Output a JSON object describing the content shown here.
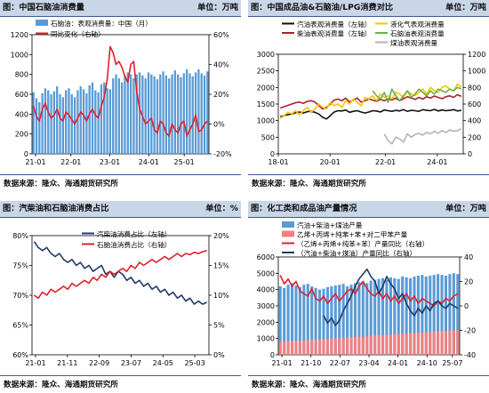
{
  "panels": [
    {
      "prefix": "图：",
      "title": "中国石脑油消费量",
      "unit": "单位：万吨",
      "source": "数据来源：隆众、海通期货研究所"
    },
    {
      "prefix": "图：",
      "title": "中国成品油&石脑油/LPG消费对比",
      "unit": "单位：万吨",
      "source": "数据来源：隆众、海通期货研究所"
    },
    {
      "prefix": "图：",
      "title": "汽柴油和石脑油消费占比",
      "unit": "单位：%",
      "source": "数据来源：隆众、海通期货研究所"
    },
    {
      "prefix": "图：",
      "title": "化工类和成品油产量情况",
      "unit": "单位：万吨",
      "source": "数据来源：隆众、海通期货研究所"
    }
  ],
  "chart_data": [
    {
      "type": "bar",
      "y_left": {
        "min": 0,
        "max": 1200,
        "ticks": [
          "0",
          "200",
          "400",
          "600",
          "800",
          "1000",
          "1200"
        ]
      },
      "y_right": {
        "min": -20,
        "max": 60,
        "ticks": [
          "-20%",
          "0%",
          "20%",
          "40%",
          "60%"
        ]
      },
      "x_ticks": [
        "21-01",
        "22-01",
        "23-01",
        "24-01",
        "25-01"
      ],
      "series": [
        {
          "name": "石脑油：表观消费量：中国（月）",
          "kind": "bar",
          "axis": "left",
          "color": "#5b9bd5",
          "values": [
            620,
            560,
            520,
            610,
            660,
            640,
            600,
            630,
            680,
            600,
            570,
            640,
            660,
            600,
            570,
            640,
            680,
            650,
            610,
            690,
            720,
            640,
            620,
            700,
            720,
            660,
            650,
            760,
            800,
            760,
            720,
            790,
            820,
            800,
            760,
            800,
            820,
            790,
            760,
            820,
            800,
            780,
            750,
            800,
            830,
            790,
            760,
            800,
            840,
            800,
            770,
            810,
            850,
            810,
            780,
            820,
            850,
            810,
            790,
            830
          ]
        },
        {
          "name": "同比变化（右轴）",
          "kind": "line",
          "axis": "right",
          "color": "#e0202c",
          "values": [
            12,
            5,
            2,
            10,
            14,
            8,
            4,
            6,
            10,
            4,
            2,
            8,
            6,
            3,
            0,
            4,
            8,
            6,
            2,
            7,
            10,
            6,
            4,
            12,
            18,
            30,
            52,
            48,
            40,
            42,
            38,
            32,
            28,
            40,
            42,
            22,
            10,
            5,
            0,
            2,
            4,
            -4,
            -6,
            2,
            0,
            -6,
            -8,
            0,
            -4,
            -6,
            0,
            2,
            -8,
            -4,
            0,
            6,
            -5,
            -4,
            0,
            2
          ]
        }
      ]
    },
    {
      "type": "line",
      "y_left": {
        "min": 0,
        "max": 3000,
        "ticks": [
          "0",
          "500",
          "1000",
          "1500",
          "2000",
          "2500",
          "3000"
        ]
      },
      "y_right": {
        "min": 0,
        "max": 1200,
        "ticks": [
          "0",
          "200",
          "400",
          "600",
          "800",
          "1000",
          "1200"
        ]
      },
      "x_ticks": [
        "18-01",
        "20-01",
        "22-01",
        "24-01"
      ],
      "series": [
        {
          "name": "汽油表观消费量（左轴）",
          "axis": "left",
          "color": "#111111",
          "values": [
            1120,
            1150,
            1180,
            1200,
            1240,
            1260,
            1230,
            1270,
            1280,
            1250,
            1200,
            1100,
            1050,
            1150,
            1260,
            1300,
            1290,
            1320,
            1250,
            1280,
            1300,
            1260,
            1230,
            1260,
            1300,
            1290,
            1260,
            1320,
            1300,
            1280,
            1310,
            1290,
            1330,
            1280,
            1310,
            1300,
            1280,
            1330,
            1310,
            1300,
            1340,
            1290,
            1320,
            1300,
            1310,
            1330,
            1290,
            1310
          ]
        },
        {
          "name": "柴油表观消费量（左轴）",
          "axis": "left",
          "color": "#a8222e",
          "values": [
            1380,
            1420,
            1460,
            1500,
            1540,
            1560,
            1520,
            1580,
            1600,
            1560,
            1460,
            1350,
            1400,
            1500,
            1620,
            1650,
            1600,
            1680,
            1560,
            1620,
            1680,
            1560,
            1600,
            1650,
            1620,
            1580,
            1640,
            1600,
            1650,
            1620,
            1680,
            1600,
            1660,
            1720,
            1680,
            1640,
            1700,
            1650,
            1720,
            1680,
            1740,
            1700,
            1660,
            1720,
            1750,
            1700,
            1780,
            1730
          ]
        },
        {
          "name": "液化气表观消费量",
          "axis": "right",
          "color": "#f5c400",
          "values": [
            430,
            460,
            500,
            480,
            520,
            470,
            520,
            560,
            500,
            540,
            600,
            560,
            540,
            620,
            580,
            600,
            560,
            640,
            600,
            660,
            620,
            580,
            680,
            660,
            700,
            640,
            720,
            680,
            700,
            660,
            740,
            720,
            680,
            760,
            720,
            700,
            740,
            780,
            720,
            800,
            760,
            740,
            800,
            820,
            780,
            760,
            840,
            800
          ]
        },
        {
          "name": "石脑油表观消费量",
          "axis": "right",
          "color": "#6ab04c",
          "values": [
            null,
            null,
            null,
            null,
            null,
            null,
            null,
            null,
            null,
            null,
            null,
            null,
            null,
            null,
            null,
            null,
            null,
            null,
            null,
            null,
            null,
            null,
            null,
            null,
            760,
            700,
            660,
            740,
            620,
            780,
            700,
            640,
            700,
            760,
            680,
            720,
            780,
            740,
            700,
            760,
            720,
            780,
            760,
            740,
            780,
            760,
            800,
            780
          ]
        },
        {
          "name": "煤油表观消费量",
          "axis": "left",
          "color": "#b3b3b3",
          "values": [
            null,
            null,
            null,
            null,
            null,
            null,
            null,
            null,
            null,
            null,
            null,
            null,
            null,
            null,
            null,
            null,
            null,
            null,
            null,
            null,
            null,
            null,
            null,
            null,
            null,
            null,
            null,
            600,
            400,
            300,
            500,
            450,
            350,
            600,
            500,
            580,
            620,
            560,
            650,
            600,
            680,
            620,
            700,
            640,
            720,
            680,
            700,
            760
          ]
        }
      ]
    },
    {
      "type": "line",
      "y_left": {
        "min": 60,
        "max": 80,
        "ticks": [
          "60%",
          "65%",
          "70%",
          "75%",
          "80%"
        ]
      },
      "y_right": {
        "min": 0,
        "max": 20,
        "ticks": [
          "0%",
          "5%",
          "10%",
          "15%",
          "20%"
        ]
      },
      "x_ticks": [
        "21-01",
        "21-11",
        "22-09",
        "23-07",
        "24-05",
        "25-03"
      ],
      "series": [
        {
          "name": "汽柴油消费占比（左轴）",
          "axis": "left",
          "color": "#1f3a68",
          "values": [
            79,
            78,
            77.5,
            78,
            77,
            76.5,
            77,
            76,
            75.5,
            76,
            75,
            75.5,
            74.5,
            75,
            74,
            74.5,
            75,
            73.5,
            74,
            73,
            74,
            73.5,
            72.5,
            73,
            72,
            72.5,
            71.5,
            72,
            71,
            71.5,
            70.5,
            71,
            70,
            70.5,
            69.5,
            70,
            69,
            69.5,
            68.5,
            69,
            68.5,
            68.8
          ]
        },
        {
          "name": "石脑油消费占比（右轴）",
          "axis": "right",
          "color": "#e0202c",
          "values": [
            10,
            9.5,
            10.5,
            10,
            11,
            10.5,
            11,
            11.5,
            11,
            12,
            11.5,
            12,
            12.5,
            12,
            13,
            12.5,
            13.5,
            13,
            14,
            13.5,
            14,
            14.5,
            14,
            15,
            14.5,
            15.5,
            15,
            15.5,
            16,
            15.5,
            16,
            16.5,
            16,
            16.5,
            17,
            16.5,
            17,
            16.8,
            17.2,
            17,
            17.3,
            17.5
          ]
        }
      ]
    },
    {
      "type": "bar",
      "y_left": {
        "min": 0,
        "max": 6000,
        "ticks": [
          "0",
          "1000",
          "2000",
          "3000",
          "4000",
          "5000",
          "6000"
        ]
      },
      "y_right": {
        "min": -40,
        "max": 40,
        "ticks": [
          "-40",
          "-20",
          "0",
          "20",
          "40"
        ]
      },
      "x_ticks": [
        "21-01",
        "21-10",
        "22-07",
        "23-04",
        "24-01",
        "24-10",
        "25-07"
      ],
      "series": [
        {
          "name": "汽油+柴油+煤油产量",
          "kind": "bar",
          "axis": "left",
          "color": "#5b9bd5",
          "values": [
            4200,
            4100,
            4300,
            4400,
            4250,
            4150,
            4300,
            4350,
            4200,
            4100,
            4000,
            4050,
            4150,
            4200,
            4250,
            4300,
            4350,
            4200,
            4300,
            4400,
            4450,
            4500,
            4400,
            4550,
            4600,
            4650,
            4700,
            4600,
            4750,
            4700,
            4650,
            4800,
            4750,
            4700,
            4800,
            4850,
            4900,
            4800,
            4850,
            4900,
            4950,
            4900,
            4850,
            4950,
            5000,
            4950
          ]
        },
        {
          "name": "乙烯+丙烯+纯苯+苯+对二甲苯产量",
          "kind": "bar",
          "axis": "left",
          "color": "#f08080",
          "values": [
            800,
            820,
            850,
            840,
            860,
            880,
            870,
            900,
            920,
            910,
            940,
            960,
            980,
            1000,
            1020,
            1010,
            1040,
            1060,
            1080,
            1100,
            1120,
            1110,
            1140,
            1160,
            1180,
            1200,
            1220,
            1210,
            1240,
            1260,
            1280,
            1300,
            1290,
            1320,
            1340,
            1360,
            1380,
            1370,
            1400,
            1420,
            1440,
            1460,
            1450,
            1480,
            1500,
            1520
          ]
        },
        {
          "name": "（乙烯+丙烯+纯苯+苯）产量同比（右轴）",
          "kind": "line",
          "axis": "right",
          "color": "#e0202c",
          "values": [
            25,
            18,
            22,
            16,
            20,
            12,
            10,
            8,
            14,
            6,
            4,
            8,
            2,
            6,
            10,
            4,
            8,
            12,
            14,
            10,
            16,
            20,
            14,
            10,
            8,
            12,
            6,
            10,
            4,
            8,
            2,
            6,
            10,
            4,
            8,
            2,
            6,
            4,
            2,
            0,
            4,
            2,
            6,
            4,
            8,
            10
          ]
        },
        {
          "name": "（汽油+柴油+煤油）产量同比（右轴）",
          "kind": "line",
          "axis": "right",
          "color": "#1f3a68",
          "values": [
            null,
            null,
            null,
            null,
            null,
            null,
            null,
            null,
            null,
            null,
            null,
            -8,
            -14,
            -10,
            -16,
            -12,
            -4,
            2,
            8,
            16,
            22,
            26,
            30,
            24,
            20,
            10,
            16,
            24,
            18,
            14,
            6,
            10,
            2,
            -4,
            -8,
            -2,
            -6,
            0,
            -4,
            2,
            4,
            0,
            -2,
            2,
            0,
            -2
          ]
        }
      ]
    }
  ]
}
